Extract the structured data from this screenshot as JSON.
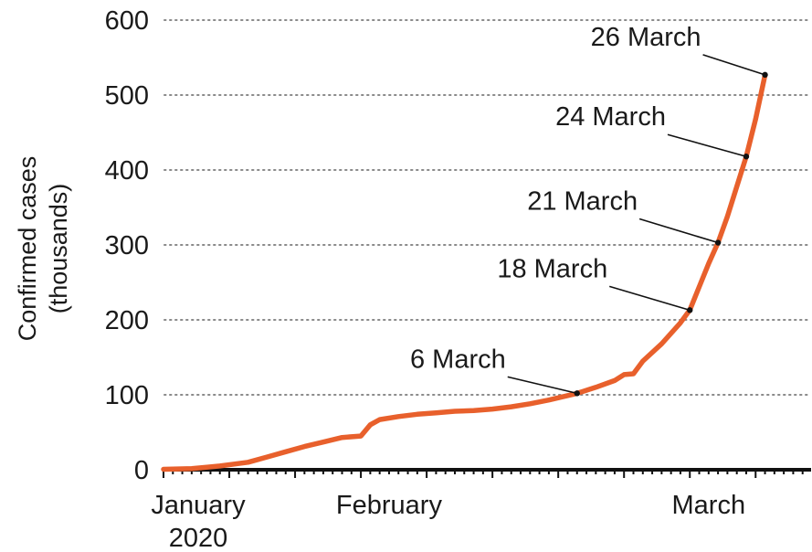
{
  "chart_data": {
    "type": "line",
    "title": "",
    "ylabel": [
      "Confirmed cases",
      "(thousands)"
    ],
    "xlabel": "",
    "ylim": [
      0,
      600
    ],
    "yticks": [
      0,
      100,
      200,
      300,
      400,
      500,
      600
    ],
    "xlim": [
      "2020-01-22",
      "2020-03-31"
    ],
    "x_tick_labels": [
      {
        "label": [
          "January",
          "2020"
        ],
        "date": "2020-01-22"
      },
      {
        "label": [
          "February"
        ],
        "date": "2020-02-15"
      },
      {
        "label": [
          "March"
        ],
        "date": "2020-03-20"
      }
    ],
    "grid": "horizontal-dotted",
    "series": [
      {
        "color": "#e8602c",
        "points": [
          [
            "2020-01-22",
            0.6
          ],
          [
            "2020-01-25",
            1.5
          ],
          [
            "2020-01-28",
            5
          ],
          [
            "2020-01-31",
            10
          ],
          [
            "2020-02-02",
            17
          ],
          [
            "2020-02-04",
            24
          ],
          [
            "2020-02-06",
            31
          ],
          [
            "2020-02-08",
            37
          ],
          [
            "2020-02-10",
            43
          ],
          [
            "2020-02-12",
            45
          ],
          [
            "2020-02-13",
            60
          ],
          [
            "2020-02-14",
            67
          ],
          [
            "2020-02-16",
            71
          ],
          [
            "2020-02-18",
            74
          ],
          [
            "2020-02-20",
            76
          ],
          [
            "2020-02-22",
            78
          ],
          [
            "2020-02-24",
            79
          ],
          [
            "2020-02-26",
            81
          ],
          [
            "2020-02-28",
            84
          ],
          [
            "2020-03-01",
            88
          ],
          [
            "2020-03-03",
            93
          ],
          [
            "2020-03-06",
            102
          ],
          [
            "2020-03-08",
            110
          ],
          [
            "2020-03-10",
            119
          ],
          [
            "2020-03-11",
            127
          ],
          [
            "2020-03-12",
            128
          ],
          [
            "2020-03-13",
            145
          ],
          [
            "2020-03-15",
            168
          ],
          [
            "2020-03-17",
            196
          ],
          [
            "2020-03-18",
            213
          ],
          [
            "2020-03-19",
            244
          ],
          [
            "2020-03-20",
            275
          ],
          [
            "2020-03-21",
            303
          ],
          [
            "2020-03-22",
            338
          ],
          [
            "2020-03-23",
            378
          ],
          [
            "2020-03-24",
            418
          ],
          [
            "2020-03-25",
            468
          ],
          [
            "2020-03-26",
            527
          ]
        ]
      }
    ],
    "annotations": [
      {
        "label": "6 March",
        "date": "2020-03-06",
        "value": 102
      },
      {
        "label": "18 March",
        "date": "2020-03-18",
        "value": 213
      },
      {
        "label": "21 March",
        "date": "2020-03-21",
        "value": 303
      },
      {
        "label": "24 March",
        "date": "2020-03-24",
        "value": 418
      },
      {
        "label": "26 March",
        "date": "2020-03-26",
        "value": 527
      }
    ]
  }
}
